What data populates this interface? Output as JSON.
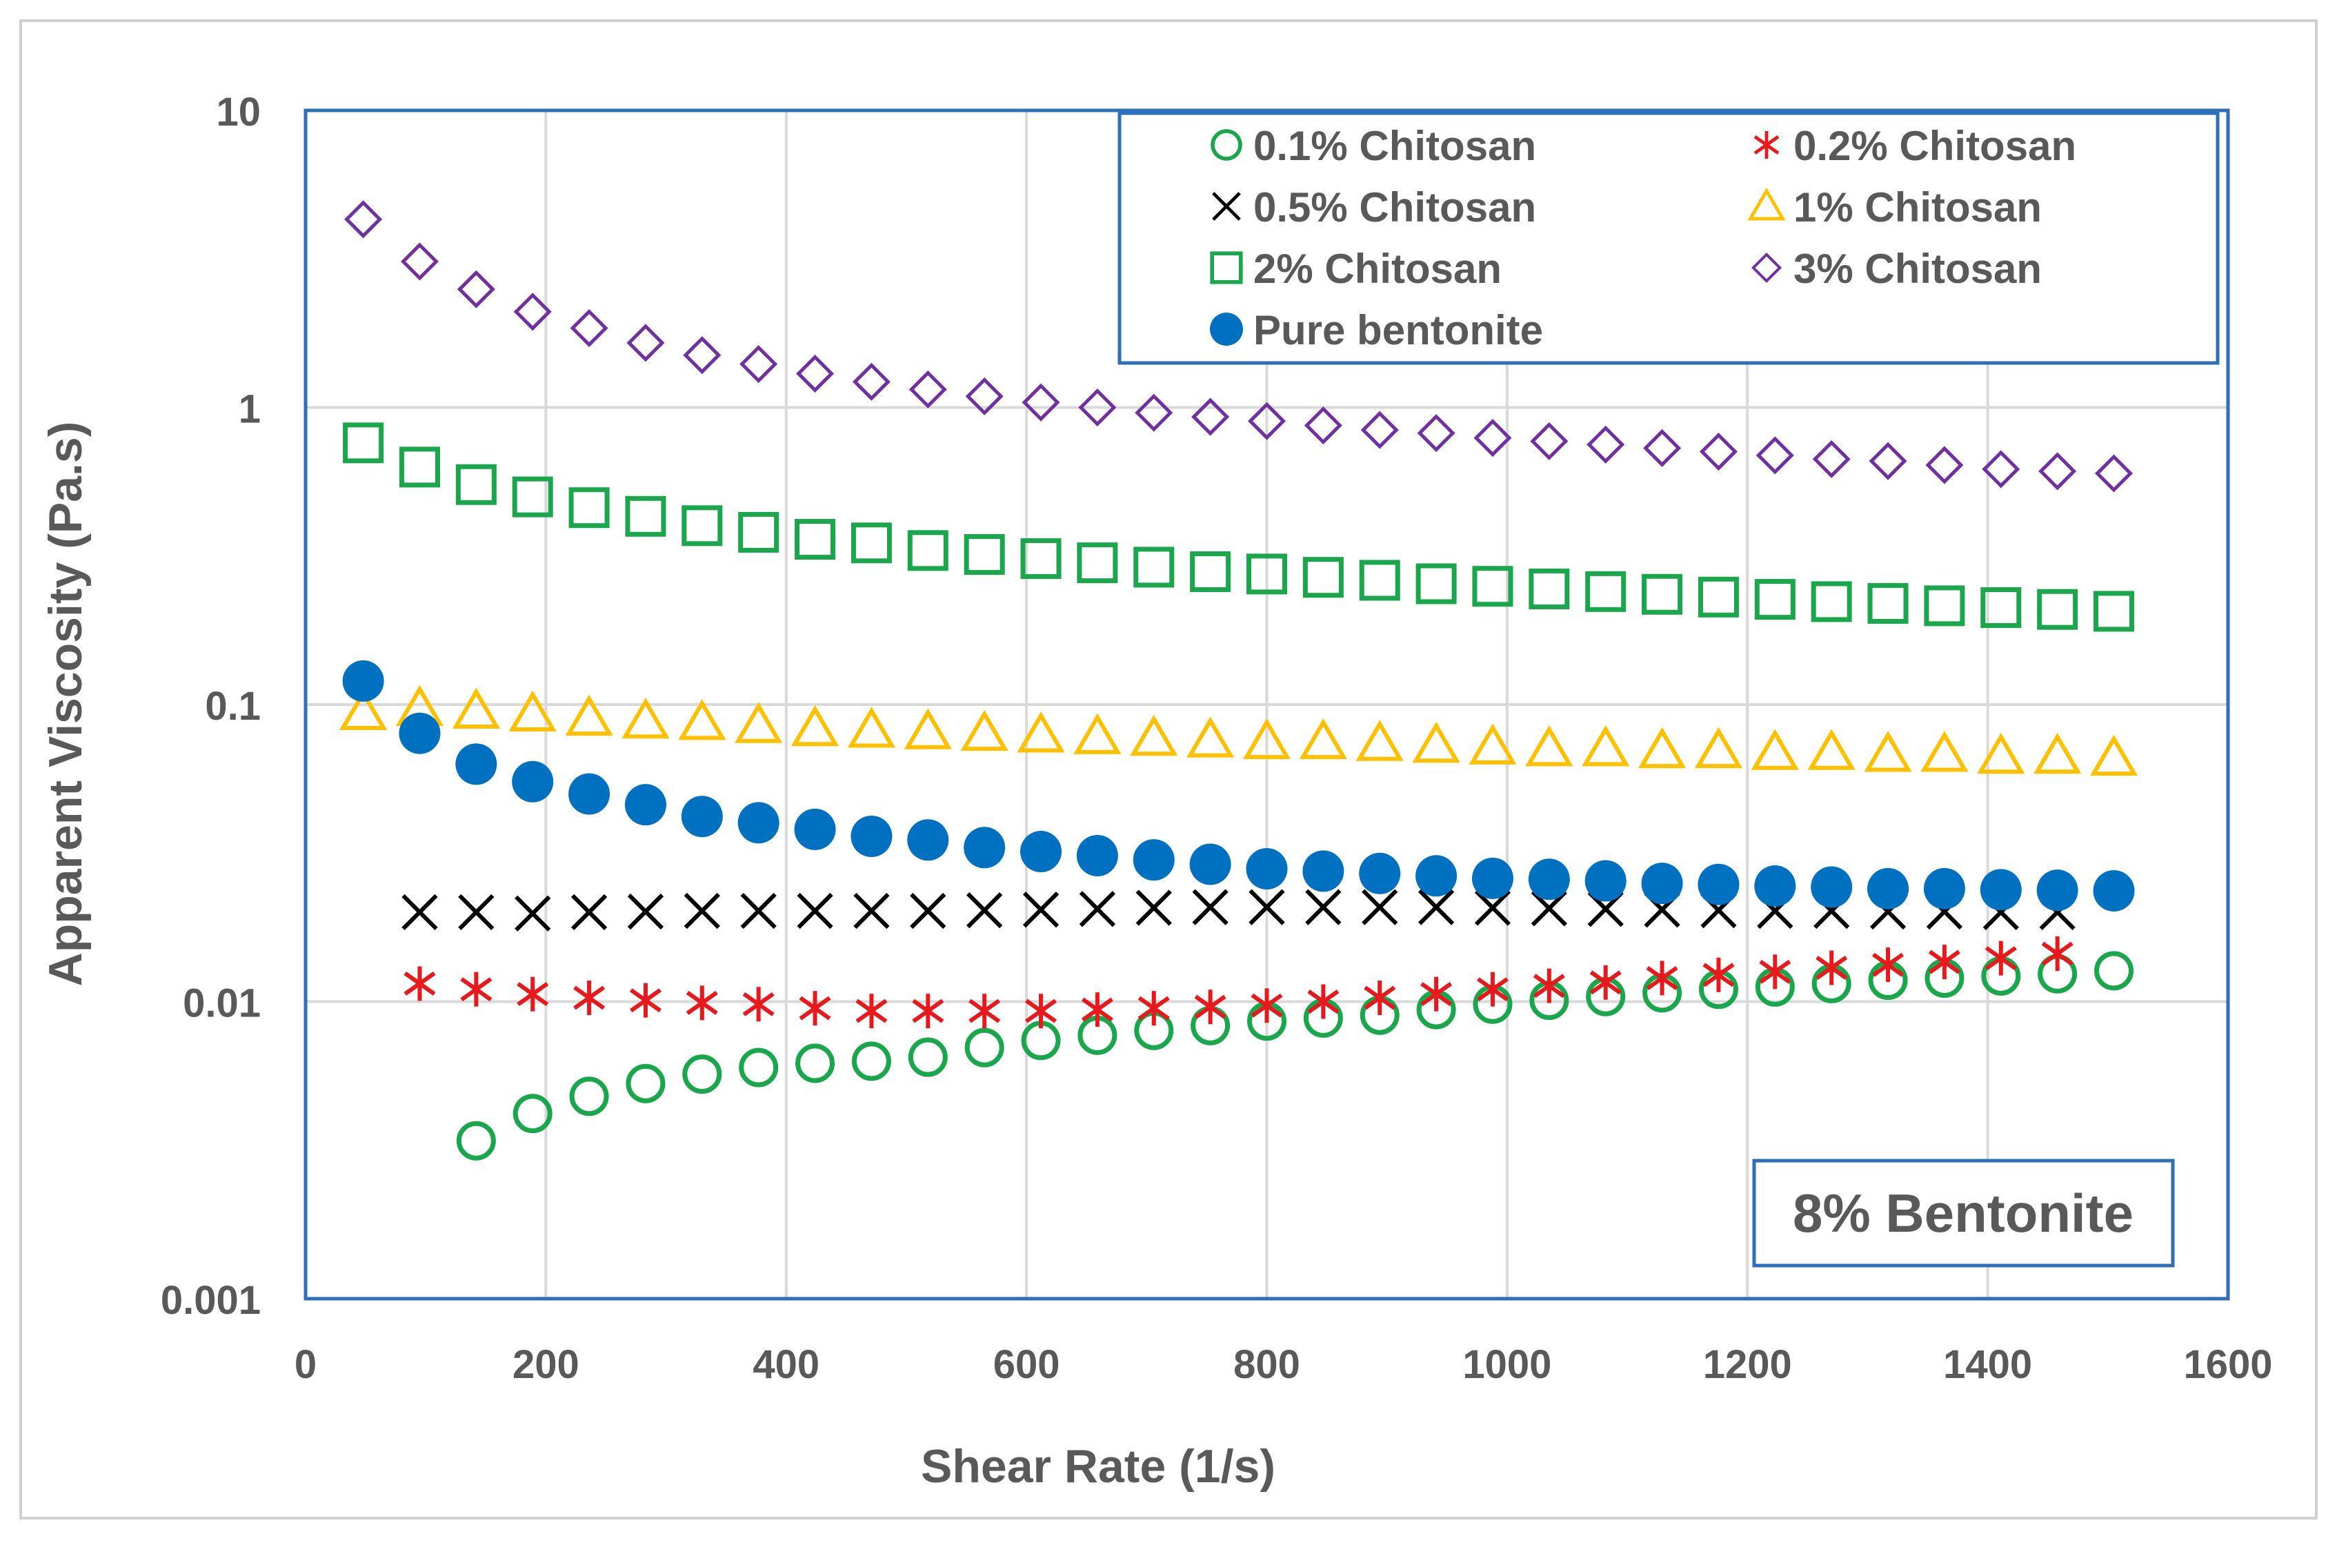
{
  "chart_data": {
    "type": "scatter",
    "xlabel": "Shear Rate (1/s)",
    "ylabel": "Apparent Viscosity (Pa.s)",
    "xlim": [
      0,
      1600
    ],
    "ylim": [
      0.001,
      10
    ],
    "y_scale": "log",
    "grid": true,
    "legend_position": "top-right",
    "x_ticks": [
      "0",
      "200",
      "400",
      "600",
      "800",
      "1000",
      "1200",
      "1400",
      "1600"
    ],
    "y_ticks": [
      "0.001",
      "0.01",
      "0.1",
      "1",
      "10"
    ],
    "annotation": "8% Bentonite",
    "series": [
      {
        "name": "0.1% Chitosan",
        "marker": "circle-open",
        "color": "#1aa64a",
        "x": [
          142,
          189,
          236,
          283,
          330,
          377,
          424,
          471,
          518,
          565,
          612,
          659,
          706,
          753,
          800,
          847,
          894,
          941,
          988,
          1035,
          1082,
          1129,
          1176,
          1223,
          1270,
          1317,
          1364,
          1411,
          1458,
          1505
        ],
        "y": [
          0.0034,
          0.0042,
          0.0048,
          0.0053,
          0.0057,
          0.006,
          0.0062,
          0.0063,
          0.0065,
          0.007,
          0.0074,
          0.0077,
          0.008,
          0.0083,
          0.0086,
          0.0088,
          0.009,
          0.0094,
          0.0098,
          0.0101,
          0.0104,
          0.0107,
          0.011,
          0.0112,
          0.0115,
          0.0118,
          0.012,
          0.0122,
          0.0124,
          0.0127
        ]
      },
      {
        "name": "0.2% Chitosan",
        "marker": "asterisk",
        "color": "#e8191c",
        "x": [
          95,
          142,
          189,
          236,
          283,
          330,
          377,
          424,
          471,
          518,
          565,
          612,
          659,
          706,
          753,
          800,
          847,
          894,
          941,
          988,
          1035,
          1082,
          1129,
          1176,
          1223,
          1270,
          1317,
          1364,
          1411,
          1458
        ],
        "y": [
          0.0115,
          0.011,
          0.0106,
          0.0103,
          0.0101,
          0.0099,
          0.0098,
          0.0095,
          0.0093,
          0.0093,
          0.0093,
          0.0093,
          0.0094,
          0.0095,
          0.0096,
          0.0097,
          0.01,
          0.0103,
          0.0106,
          0.011,
          0.0113,
          0.0116,
          0.012,
          0.0123,
          0.0126,
          0.013,
          0.0133,
          0.0136,
          0.014,
          0.0145
        ]
      },
      {
        "name": "0.5% Chitosan",
        "marker": "x",
        "color": "#000000",
        "x": [
          95,
          142,
          189,
          236,
          283,
          330,
          377,
          424,
          471,
          518,
          565,
          612,
          659,
          706,
          753,
          800,
          847,
          894,
          941,
          988,
          1035,
          1082,
          1129,
          1176,
          1223,
          1270,
          1317,
          1364,
          1411,
          1458
        ],
        "y": [
          0.02,
          0.02,
          0.0198,
          0.02,
          0.0201,
          0.0202,
          0.0202,
          0.0202,
          0.0202,
          0.0202,
          0.0203,
          0.0204,
          0.0205,
          0.0207,
          0.0208,
          0.0208,
          0.0208,
          0.0208,
          0.0208,
          0.0207,
          0.0206,
          0.0205,
          0.0204,
          0.0203,
          0.0202,
          0.0202,
          0.0201,
          0.0201,
          0.02,
          0.02
        ]
      },
      {
        "name": "1% Chitosan",
        "marker": "triangle-open",
        "color": "#ffc000",
        "x": [
          48,
          95,
          142,
          189,
          236,
          283,
          330,
          377,
          424,
          471,
          518,
          565,
          612,
          659,
          706,
          753,
          800,
          847,
          894,
          941,
          988,
          1035,
          1082,
          1129,
          1176,
          1223,
          1270,
          1317,
          1364,
          1411,
          1458,
          1505
        ],
        "y": [
          0.094,
          0.097,
          0.095,
          0.093,
          0.09,
          0.088,
          0.087,
          0.085,
          0.083,
          0.082,
          0.081,
          0.08,
          0.079,
          0.078,
          0.077,
          0.076,
          0.075,
          0.075,
          0.074,
          0.073,
          0.072,
          0.071,
          0.071,
          0.07,
          0.07,
          0.069,
          0.069,
          0.068,
          0.068,
          0.067,
          0.067,
          0.066
        ]
      },
      {
        "name": "2% Chitosan",
        "marker": "square-open",
        "color": "#1aa64a",
        "x": [
          48,
          95,
          142,
          189,
          236,
          283,
          330,
          377,
          424,
          471,
          518,
          565,
          612,
          659,
          706,
          753,
          800,
          847,
          894,
          941,
          988,
          1035,
          1082,
          1129,
          1176,
          1223,
          1270,
          1317,
          1364,
          1411,
          1458,
          1505
        ],
        "y": [
          0.76,
          0.63,
          0.55,
          0.5,
          0.46,
          0.43,
          0.4,
          0.38,
          0.36,
          0.35,
          0.33,
          0.32,
          0.31,
          0.3,
          0.29,
          0.28,
          0.275,
          0.268,
          0.262,
          0.255,
          0.25,
          0.245,
          0.24,
          0.235,
          0.23,
          0.226,
          0.222,
          0.219,
          0.215,
          0.212,
          0.209,
          0.206
        ]
      },
      {
        "name": "3% Chitosan",
        "marker": "diamond-open",
        "color": "#7030a0",
        "x": [
          48,
          95,
          142,
          189,
          236,
          283,
          330,
          377,
          424,
          471,
          518,
          565,
          612,
          659,
          706,
          753,
          800,
          847,
          894,
          941,
          988,
          1035,
          1082,
          1129,
          1176,
          1223,
          1270,
          1317,
          1364,
          1411,
          1458,
          1505
        ],
        "y": [
          4.3,
          3.1,
          2.5,
          2.1,
          1.85,
          1.65,
          1.5,
          1.4,
          1.3,
          1.22,
          1.15,
          1.09,
          1.04,
          1.0,
          0.96,
          0.93,
          0.9,
          0.87,
          0.84,
          0.82,
          0.79,
          0.77,
          0.75,
          0.73,
          0.71,
          0.69,
          0.67,
          0.66,
          0.64,
          0.62,
          0.61,
          0.6
        ]
      },
      {
        "name": "Pure bentonite",
        "marker": "circle-filled",
        "color": "#0070c0",
        "x": [
          48,
          95,
          142,
          189,
          236,
          283,
          330,
          377,
          424,
          471,
          518,
          565,
          612,
          659,
          706,
          753,
          800,
          847,
          894,
          941,
          988,
          1035,
          1082,
          1129,
          1176,
          1223,
          1270,
          1317,
          1364,
          1411,
          1458,
          1505
        ],
        "y": [
          0.12,
          0.08,
          0.063,
          0.055,
          0.05,
          0.046,
          0.042,
          0.04,
          0.038,
          0.036,
          0.035,
          0.033,
          0.032,
          0.031,
          0.03,
          0.029,
          0.028,
          0.0275,
          0.027,
          0.0265,
          0.026,
          0.0258,
          0.0255,
          0.025,
          0.0248,
          0.0245,
          0.0243,
          0.024,
          0.024,
          0.0238,
          0.0237,
          0.0236
        ]
      }
    ]
  }
}
